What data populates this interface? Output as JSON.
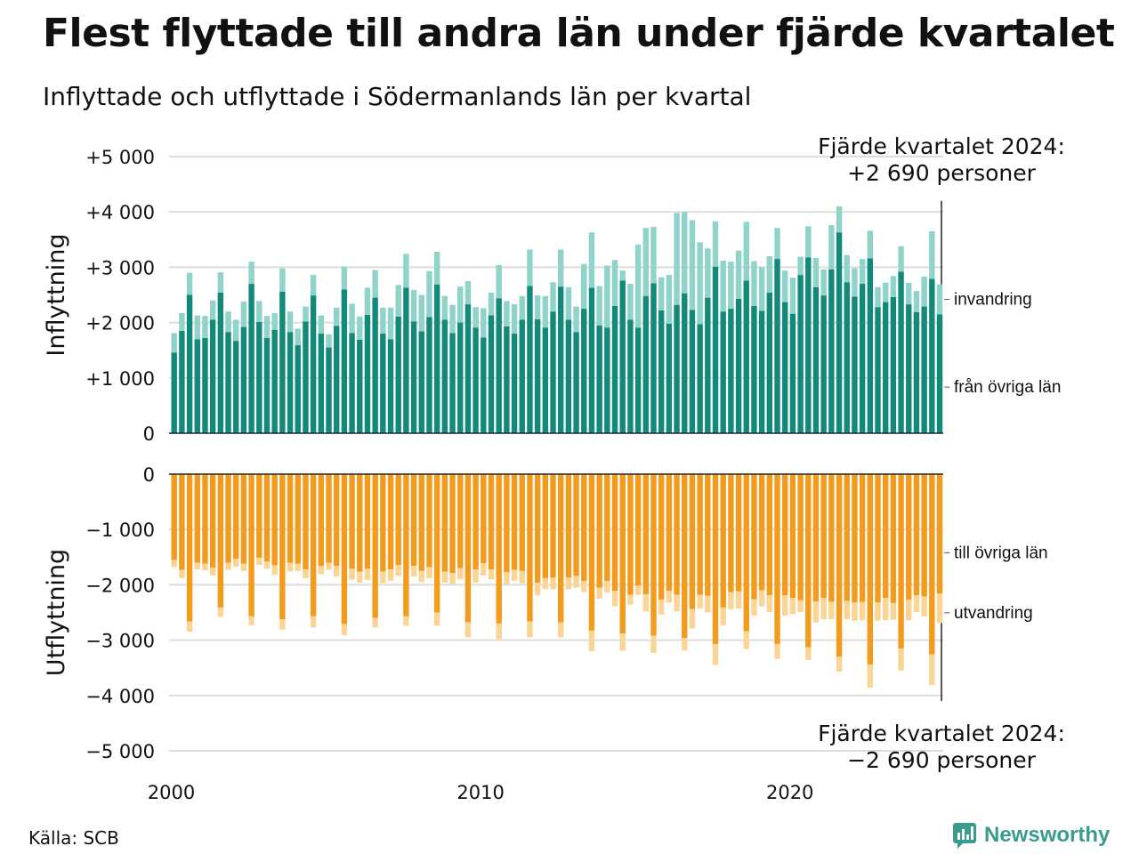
{
  "title": "Flest flyttade till andra län under fjärde kvartalet",
  "subtitle": "Inflyttade och utflyttade i Södermanlands län per kvartal",
  "source": "Källa: SCB",
  "brand": "Newsworthy",
  "colors": {
    "in_domestic": "#13897a",
    "in_immigration": "#8fd3ca",
    "out_domestic": "#f29b1d",
    "out_emigration": "#fad595",
    "grid": "#dddddd",
    "axis": "#222222"
  },
  "chart_data": {
    "type": "bar",
    "stacked": true,
    "x": [
      "2000K1",
      "2000K2",
      "2000K3",
      "2000K4",
      "2001K1",
      "2001K2",
      "2001K3",
      "2001K4",
      "2002K1",
      "2002K2",
      "2002K3",
      "2002K4",
      "2003K1",
      "2003K2",
      "2003K3",
      "2003K4",
      "2004K1",
      "2004K2",
      "2004K3",
      "2004K4",
      "2005K1",
      "2005K2",
      "2005K3",
      "2005K4",
      "2006K1",
      "2006K2",
      "2006K3",
      "2006K4",
      "2007K1",
      "2007K2",
      "2007K3",
      "2007K4",
      "2008K1",
      "2008K2",
      "2008K3",
      "2008K4",
      "2009K1",
      "2009K2",
      "2009K3",
      "2009K4",
      "2010K1",
      "2010K2",
      "2010K3",
      "2010K4",
      "2011K1",
      "2011K2",
      "2011K3",
      "2011K4",
      "2012K1",
      "2012K2",
      "2012K3",
      "2012K4",
      "2013K1",
      "2013K2",
      "2013K3",
      "2013K4",
      "2014K1",
      "2014K2",
      "2014K3",
      "2014K4",
      "2015K1",
      "2015K2",
      "2015K3",
      "2015K4",
      "2016K1",
      "2016K2",
      "2016K3",
      "2016K4",
      "2017K1",
      "2017K2",
      "2017K3",
      "2017K4",
      "2018K1",
      "2018K2",
      "2018K3",
      "2018K4",
      "2019K1",
      "2019K2",
      "2019K3",
      "2019K4",
      "2020K1",
      "2020K2",
      "2020K3",
      "2020K4",
      "2021K1",
      "2021K2",
      "2021K3",
      "2021K4",
      "2022K1",
      "2022K2",
      "2022K3",
      "2022K4",
      "2023K1",
      "2023K2",
      "2023K3",
      "2023K4",
      "2024K1",
      "2024K2",
      "2024K3",
      "2024K4"
    ],
    "x_tick_labels": [
      "2000",
      "2010",
      "2020"
    ],
    "panels": [
      {
        "ylabel": "Inflyttning",
        "ylim": [
          0,
          5000
        ],
        "y_tick_labels": [
          "0",
          "+1 000",
          "+2 000",
          "+3 000",
          "+4 000",
          "+5 000"
        ],
        "series": [
          {
            "name": "från övriga län",
            "values": [
              1460,
              1850,
              2500,
              1700,
              1720,
              2050,
              2540,
              1830,
              1670,
              1920,
              2700,
              2010,
              1720,
              1870,
              2560,
              1830,
              1590,
              2020,
              2490,
              1800,
              1550,
              1940,
              2600,
              1810,
              1690,
              2140,
              2450,
              1800,
              1700,
              2110,
              2630,
              2020,
              1840,
              2100,
              2690,
              2050,
              1810,
              2000,
              2330,
              1910,
              1730,
              2130,
              2440,
              1930,
              1800,
              2050,
              2660,
              2060,
              1910,
              2200,
              2650,
              2050,
              1830,
              2250,
              2630,
              1950,
              1910,
              2300,
              2760,
              2050,
              1910,
              2480,
              2710,
              2220,
              1980,
              2320,
              2530,
              2230,
              1970,
              2450,
              3010,
              2200,
              2250,
              2430,
              2760,
              2300,
              2210,
              2540,
              3150,
              2370,
              2160,
              2860,
              3180,
              2640,
              2490,
              2960,
              3630,
              2730,
              2470,
              2700,
              3160,
              2280,
              2370,
              2460,
              2920,
              2330,
              2190,
              2290,
              2790,
              2150
            ]
          },
          {
            "name": "invandring",
            "values": [
              350,
              320,
              400,
              430,
              400,
              350,
              370,
              370,
              380,
              460,
              400,
              380,
              400,
              300,
              420,
              370,
              300,
              270,
              370,
              330,
              240,
              330,
              410,
              530,
              420,
              490,
              500,
              470,
              570,
              570,
              610,
              570,
              660,
              830,
              590,
              430,
              510,
              650,
              420,
              370,
              530,
              410,
              600,
              460,
              530,
              430,
              660,
              430,
              570,
              530,
              670,
              590,
              460,
              810,
              1000,
              710,
              1120,
              830,
              180,
              650,
              1500,
              1230,
              1020,
              600,
              880,
              1660,
              1470,
              1620,
              1480,
              890,
              820,
              920,
              850,
              870,
              1060,
              810,
              790,
              660,
              560,
              570,
              650,
              330,
              560,
              530,
              470,
              800,
              470,
              490,
              510,
              450,
              500,
              360,
              350,
              380,
              460,
              390,
              380,
              540,
              860,
              540
            ]
          }
        ]
      },
      {
        "ylabel": "Utflyttning",
        "ylim": [
          -5000,
          0
        ],
        "y_tick_labels": [
          "0",
          "−1 000",
          "−2 000",
          "−3 000",
          "−4 000",
          "−5 000"
        ],
        "series": [
          {
            "name": "till övriga län",
            "values": [
              -1550,
              -1730,
              -2660,
              -1600,
              -1620,
              -1690,
              -2410,
              -1600,
              -1530,
              -1620,
              -2570,
              -1510,
              -1580,
              -1650,
              -2620,
              -1600,
              -1620,
              -1720,
              -2570,
              -1660,
              -1600,
              -1660,
              -2710,
              -1710,
              -1760,
              -1710,
              -2600,
              -1760,
              -1720,
              -1640,
              -2570,
              -1660,
              -1750,
              -1680,
              -2500,
              -1760,
              -1790,
              -1700,
              -2680,
              -1720,
              -1610,
              -1720,
              -2700,
              -1770,
              -1730,
              -1750,
              -2660,
              -1960,
              -1880,
              -1870,
              -2680,
              -1870,
              -1840,
              -1930,
              -2830,
              -2050,
              -1930,
              -2110,
              -2880,
              -2180,
              -2010,
              -2170,
              -2920,
              -2270,
              -2110,
              -2180,
              -2960,
              -2440,
              -2180,
              -2200,
              -3070,
              -2410,
              -2130,
              -2120,
              -2840,
              -2260,
              -2100,
              -2190,
              -3070,
              -2190,
              -2240,
              -2280,
              -3130,
              -2300,
              -2240,
              -2310,
              -3300,
              -2290,
              -2320,
              -2310,
              -3440,
              -2320,
              -2240,
              -2330,
              -3150,
              -2270,
              -2190,
              -2210,
              -3260,
              -2160
            ]
          },
          {
            "name": "utvandring",
            "values": [
              -130,
              -150,
              -190,
              -120,
              -120,
              -140,
              -170,
              -130,
              -140,
              -130,
              -160,
              -130,
              -130,
              -170,
              -190,
              -160,
              -130,
              -160,
              -200,
              -150,
              -130,
              -190,
              -200,
              -200,
              -200,
              -200,
              -170,
              -210,
              -210,
              -200,
              -170,
              -190,
              -200,
              -200,
              -240,
              -200,
              -200,
              -200,
              -270,
              -240,
              -220,
              -180,
              -280,
              -220,
              -200,
              -220,
              -290,
              -230,
              -200,
              -210,
              -270,
              -210,
              -210,
              -200,
              -370,
              -200,
              -210,
              -280,
              -310,
              -180,
              -170,
              -310,
              -310,
              -270,
              -210,
              -300,
              -230,
              -350,
              -250,
              -300,
              -380,
              -320,
              -310,
              -310,
              -320,
              -300,
              -290,
              -300,
              -270,
              -370,
              -290,
              -210,
              -230,
              -380,
              -380,
              -310,
              -270,
              -330,
              -330,
              -330,
              -420,
              -330,
              -400,
              -300,
              -400,
              -370,
              -300,
              -360,
              -550,
              -530
            ]
          }
        ]
      }
    ],
    "annotations": [
      {
        "lines": [
          "Fjärde kvartalet 2024:",
          "+2 690 personer"
        ]
      },
      {
        "lines": [
          "Fjärde kvartalet 2024:",
          "−2 690 personer"
        ]
      }
    ]
  }
}
